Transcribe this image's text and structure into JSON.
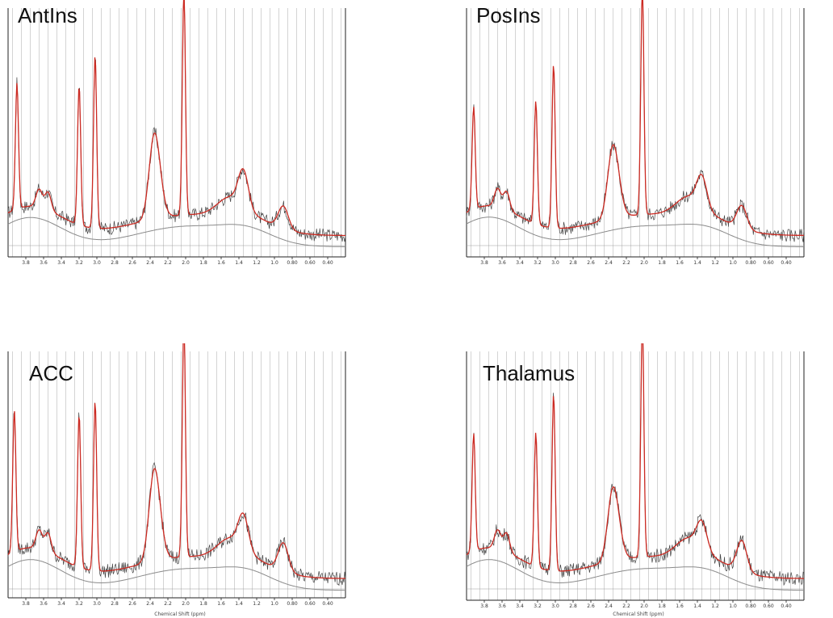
{
  "chart_data": [
    {
      "type": "line",
      "title": "AntIns",
      "xlabel": "",
      "xlim": [
        4.0,
        0.2
      ],
      "x_ticks": [
        "3.8",
        "3.6",
        "3.4",
        "3.2",
        "3.0",
        "2.8",
        "2.6",
        "2.4",
        "2.2",
        "2.0",
        "1.8",
        "1.6",
        "1.4",
        "1.2",
        "1.0",
        "0.80",
        "0.60",
        "0.40"
      ],
      "peaks": [
        {
          "ppm": 3.9,
          "height": 0.56
        },
        {
          "ppm": 3.2,
          "height": 0.62
        },
        {
          "ppm": 3.02,
          "height": 0.77
        },
        {
          "ppm": 2.36,
          "height": 0.32
        },
        {
          "ppm": 2.02,
          "height": 1.0
        },
        {
          "ppm": 1.35,
          "height": 0.16
        },
        {
          "ppm": 0.9,
          "height": 0.1
        }
      ],
      "series": [
        {
          "name": "",
          "color": "#444444"
        },
        {
          "name": "",
          "color": "#cc2a22"
        },
        {
          "name": "",
          "color": "#8a8a8a"
        }
      ]
    },
    {
      "type": "line",
      "title": "PosIns",
      "xlabel": "",
      "xlim": [
        4.0,
        0.2
      ],
      "x_ticks": [
        "3.8",
        "3.6",
        "3.4",
        "3.2",
        "3.0",
        "2.8",
        "2.6",
        "2.4",
        "2.2",
        "2.0",
        "1.8",
        "1.6",
        "1.4",
        "1.2",
        "1.0",
        "0.80",
        "0.60",
        "0.40"
      ],
      "peaks": [
        {
          "ppm": 3.92,
          "height": 0.45
        },
        {
          "ppm": 3.22,
          "height": 0.54
        },
        {
          "ppm": 3.02,
          "height": 0.72
        },
        {
          "ppm": 2.36,
          "height": 0.26
        },
        {
          "ppm": 2.02,
          "height": 1.0
        },
        {
          "ppm": 1.35,
          "height": 0.13
        },
        {
          "ppm": 0.9,
          "height": 0.1
        }
      ],
      "series": [
        {
          "name": "",
          "color": "#444444"
        },
        {
          "name": "",
          "color": "#cc2a22"
        },
        {
          "name": "",
          "color": "#8a8a8a"
        }
      ]
    },
    {
      "type": "line",
      "title": "ACC",
      "xlabel": "Chemical Shift (ppm)",
      "xlim": [
        4.0,
        0.2
      ],
      "x_ticks": [
        "3.8",
        "3.6",
        "3.4",
        "3.2",
        "3.0",
        "2.8",
        "2.6",
        "2.4",
        "2.2",
        "2.0",
        "1.8",
        "1.6",
        "1.4",
        "1.2",
        "1.0",
        "0.80",
        "0.60",
        "0.40"
      ],
      "peaks": [
        {
          "ppm": 3.93,
          "height": 0.6
        },
        {
          "ppm": 3.2,
          "height": 0.65
        },
        {
          "ppm": 3.02,
          "height": 0.72
        },
        {
          "ppm": 2.36,
          "height": 0.33
        },
        {
          "ppm": 2.02,
          "height": 1.0
        },
        {
          "ppm": 1.35,
          "height": 0.14
        },
        {
          "ppm": 0.9,
          "height": 0.12
        }
      ],
      "series": [
        {
          "name": "",
          "color": "#444444"
        },
        {
          "name": "",
          "color": "#cc2a22"
        },
        {
          "name": "",
          "color": "#8a8a8a"
        }
      ]
    },
    {
      "type": "line",
      "title": "Thalamus",
      "xlabel": "Chemical Shift (ppm)",
      "xlim": [
        4.0,
        0.2
      ],
      "x_ticks": [
        "3.8",
        "3.6",
        "3.4",
        "3.2",
        "3.0",
        "2.8",
        "2.6",
        "2.4",
        "2.2",
        "2.0",
        "1.8",
        "1.6",
        "1.4",
        "1.2",
        "1.0",
        "0.80",
        "0.60",
        "0.40"
      ],
      "peaks": [
        {
          "ppm": 3.92,
          "height": 0.5
        },
        {
          "ppm": 3.22,
          "height": 0.57
        },
        {
          "ppm": 3.02,
          "height": 0.75
        },
        {
          "ppm": 2.36,
          "height": 0.25
        },
        {
          "ppm": 2.02,
          "height": 1.0
        },
        {
          "ppm": 1.35,
          "height": 0.11
        },
        {
          "ppm": 0.9,
          "height": 0.13
        }
      ],
      "series": [
        {
          "name": "",
          "color": "#444444"
        },
        {
          "name": "",
          "color": "#cc2a22"
        },
        {
          "name": "",
          "color": "#8a8a8a"
        }
      ]
    }
  ]
}
